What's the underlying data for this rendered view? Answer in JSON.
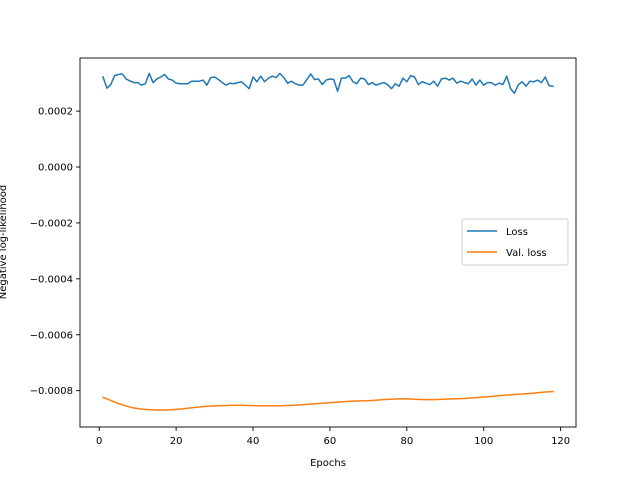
{
  "chart_data": {
    "type": "line",
    "title": "",
    "xlabel": "Epochs",
    "ylabel": "Negative log-likelihood",
    "xlim": [
      -5,
      124
    ],
    "ylim": [
      -0.00093,
      0.00039
    ],
    "grid": false,
    "legend_position": "center-right",
    "x_ticks": [
      0,
      20,
      40,
      60,
      80,
      100,
      120
    ],
    "x_tick_labels": [
      "0",
      "20",
      "40",
      "60",
      "80",
      "100",
      "120"
    ],
    "y_ticks": [
      0.0002,
      0.0,
      -0.0002,
      -0.0004,
      -0.0006,
      -0.0008
    ],
    "y_tick_labels": [
      "0.0002",
      "0.0000",
      "−0.0002",
      "−0.0004",
      "−0.0006",
      "−0.0008"
    ],
    "series": [
      {
        "name": "Loss",
        "color": "#1f77b4",
        "x": [
          1,
          2,
          3,
          4,
          5,
          6,
          7,
          8,
          9,
          10,
          11,
          12,
          13,
          14,
          15,
          16,
          17,
          18,
          19,
          20,
          21,
          22,
          23,
          24,
          25,
          26,
          27,
          28,
          29,
          30,
          31,
          32,
          33,
          34,
          35,
          36,
          37,
          38,
          39,
          40,
          41,
          42,
          43,
          44,
          45,
          46,
          47,
          48,
          49,
          50,
          51,
          52,
          53,
          54,
          55,
          56,
          57,
          58,
          59,
          60,
          61,
          62,
          63,
          64,
          65,
          66,
          67,
          68,
          69,
          70,
          71,
          72,
          73,
          74,
          75,
          76,
          77,
          78,
          79,
          80,
          81,
          82,
          83,
          84,
          85,
          86,
          87,
          88,
          89,
          90,
          91,
          92,
          93,
          94,
          95,
          96,
          97,
          98,
          99,
          100,
          101,
          102,
          103,
          104,
          105,
          106,
          107,
          108,
          109,
          110,
          111,
          112,
          113,
          114,
          115,
          116,
          117,
          118
        ],
        "values": [
          0.000322,
          0.000282,
          0.000295,
          0.000327,
          0.000331,
          0.000333,
          0.000315,
          0.000308,
          0.000302,
          0.000302,
          0.000293,
          0.000298,
          0.000335,
          0.000302,
          0.000315,
          0.000322,
          0.000331,
          0.000315,
          0.000311,
          0.0003,
          0.000298,
          0.000298,
          0.000298,
          0.000307,
          0.000307,
          0.000307,
          0.000311,
          0.000293,
          0.00032,
          0.000322,
          0.000313,
          0.000302,
          0.000293,
          0.0003,
          0.000298,
          0.000302,
          0.000305,
          0.000293,
          0.00028,
          0.000322,
          0.000305,
          0.000325,
          0.000305,
          0.000318,
          0.000325,
          0.00032,
          0.000335,
          0.00032,
          0.0003,
          0.000307,
          0.000298,
          0.000293,
          0.000293,
          0.000313,
          0.000333,
          0.000313,
          0.000315,
          0.000295,
          0.000311,
          0.000315,
          0.000313,
          0.000271,
          0.000318,
          0.000318,
          0.000327,
          0.000305,
          0.000298,
          0.000318,
          0.000315,
          0.000295,
          0.000302,
          0.000293,
          0.000298,
          0.000302,
          0.000295,
          0.00028,
          0.000298,
          0.000289,
          0.000318,
          0.000305,
          0.000327,
          0.000322,
          0.000295,
          0.000305,
          0.0003,
          0.000295,
          0.000307,
          0.000289,
          0.000315,
          0.000318,
          0.000311,
          0.000318,
          0.0003,
          0.000307,
          0.000302,
          0.000298,
          0.000315,
          0.000293,
          0.000311,
          0.000293,
          0.000302,
          0.000302,
          0.000293,
          0.0003,
          0.000295,
          0.000325,
          0.00028,
          0.000264,
          0.000295,
          0.000305,
          0.000289,
          0.000307,
          0.000305,
          0.000311,
          0.000302,
          0.000322,
          0.000291,
          0.000289
        ]
      },
      {
        "name": "Val. loss",
        "color": "#ff7f0e",
        "x": [
          1,
          3,
          5,
          7,
          9,
          11,
          13,
          15,
          17,
          19,
          21,
          23,
          25,
          27,
          29,
          31,
          33,
          35,
          37,
          39,
          41,
          43,
          45,
          47,
          49,
          51,
          53,
          55,
          57,
          59,
          61,
          63,
          65,
          67,
          69,
          71,
          73,
          75,
          77,
          79,
          81,
          83,
          85,
          87,
          89,
          91,
          93,
          95,
          97,
          99,
          101,
          103,
          105,
          107,
          109,
          111,
          113,
          115,
          117,
          118
        ],
        "values": [
          -0.000824,
          -0.000835,
          -0.000846,
          -0.000855,
          -0.000862,
          -0.000866,
          -0.000868,
          -0.000869,
          -0.000869,
          -0.000868,
          -0.000866,
          -0.000863,
          -0.00086,
          -0.000857,
          -0.000855,
          -0.000854,
          -0.000853,
          -0.000852,
          -0.000852,
          -0.000853,
          -0.000854,
          -0.000854,
          -0.000854,
          -0.000854,
          -0.000853,
          -0.000852,
          -0.00085,
          -0.000848,
          -0.000846,
          -0.000844,
          -0.000842,
          -0.00084,
          -0.000838,
          -0.000837,
          -0.000836,
          -0.000835,
          -0.000833,
          -0.000831,
          -0.00083,
          -0.000829,
          -0.00083,
          -0.000831,
          -0.000832,
          -0.000832,
          -0.000831,
          -0.00083,
          -0.000829,
          -0.000828,
          -0.000826,
          -0.000824,
          -0.000822,
          -0.000819,
          -0.000817,
          -0.000815,
          -0.000813,
          -0.000811,
          -0.000809,
          -0.000806,
          -0.000804,
          -0.000803
        ]
      }
    ]
  }
}
